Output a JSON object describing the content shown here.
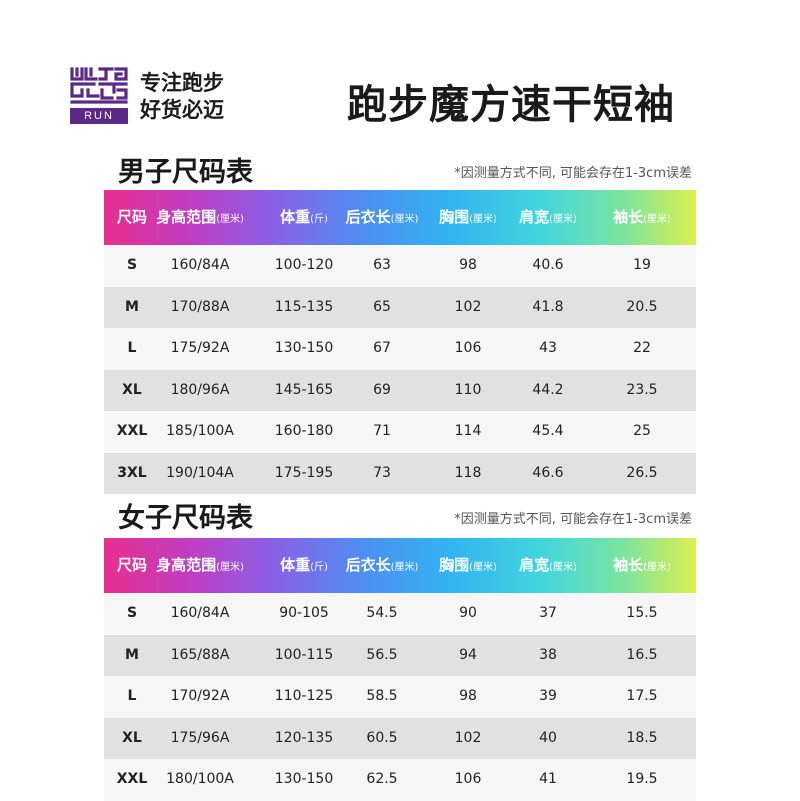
{
  "brand": {
    "logo_text": "RUN",
    "slogan_line1": "专注跑步",
    "slogan_line2": "好货必迈",
    "accent": "#5a2a86"
  },
  "product_title": "跑步魔方速干短袖",
  "header_colors": [
    "#e8308f",
    "#8b5fe6",
    "#33b2f2",
    "#41d6dc",
    "#dcf04c"
  ],
  "columns": [
    {
      "label": "尺码",
      "unit": ""
    },
    {
      "label": "身高范围",
      "unit": "(厘米)"
    },
    {
      "label": "体重",
      "unit": "(斤)"
    },
    {
      "label": "后衣长",
      "unit": "(厘米)"
    },
    {
      "label": "胸围",
      "unit": "(厘米)"
    },
    {
      "label": "肩宽",
      "unit": "(厘米)"
    },
    {
      "label": "袖长",
      "unit": "(厘米)"
    }
  ],
  "men": {
    "title": "男子尺码表",
    "note": "*因测量方式不同, 可能会存在1-3cm误差",
    "rows": [
      [
        "S",
        "160/84A",
        "100-120",
        "63",
        "98",
        "40.6",
        "19"
      ],
      [
        "M",
        "170/88A",
        "115-135",
        "65",
        "102",
        "41.8",
        "20.5"
      ],
      [
        "L",
        "175/92A",
        "130-150",
        "67",
        "106",
        "43",
        "22"
      ],
      [
        "XL",
        "180/96A",
        "145-165",
        "69",
        "110",
        "44.2",
        "23.5"
      ],
      [
        "XXL",
        "185/100A",
        "160-180",
        "71",
        "114",
        "45.4",
        "25"
      ],
      [
        "3XL",
        "190/104A",
        "175-195",
        "73",
        "118",
        "46.6",
        "26.5"
      ]
    ]
  },
  "women": {
    "title": "女子尺码表",
    "note": "*因测量方式不同, 可能会存在1-3cm误差",
    "rows": [
      [
        "S",
        "160/84A",
        "90-105",
        "54.5",
        "90",
        "37",
        "15.5"
      ],
      [
        "M",
        "165/88A",
        "100-115",
        "56.5",
        "94",
        "38",
        "16.5"
      ],
      [
        "L",
        "170/92A",
        "110-125",
        "58.5",
        "98",
        "39",
        "17.5"
      ],
      [
        "XL",
        "175/96A",
        "120-135",
        "60.5",
        "102",
        "40",
        "18.5"
      ],
      [
        "XXL",
        "180/100A",
        "130-150",
        "62.5",
        "106",
        "41",
        "19.5"
      ]
    ]
  }
}
